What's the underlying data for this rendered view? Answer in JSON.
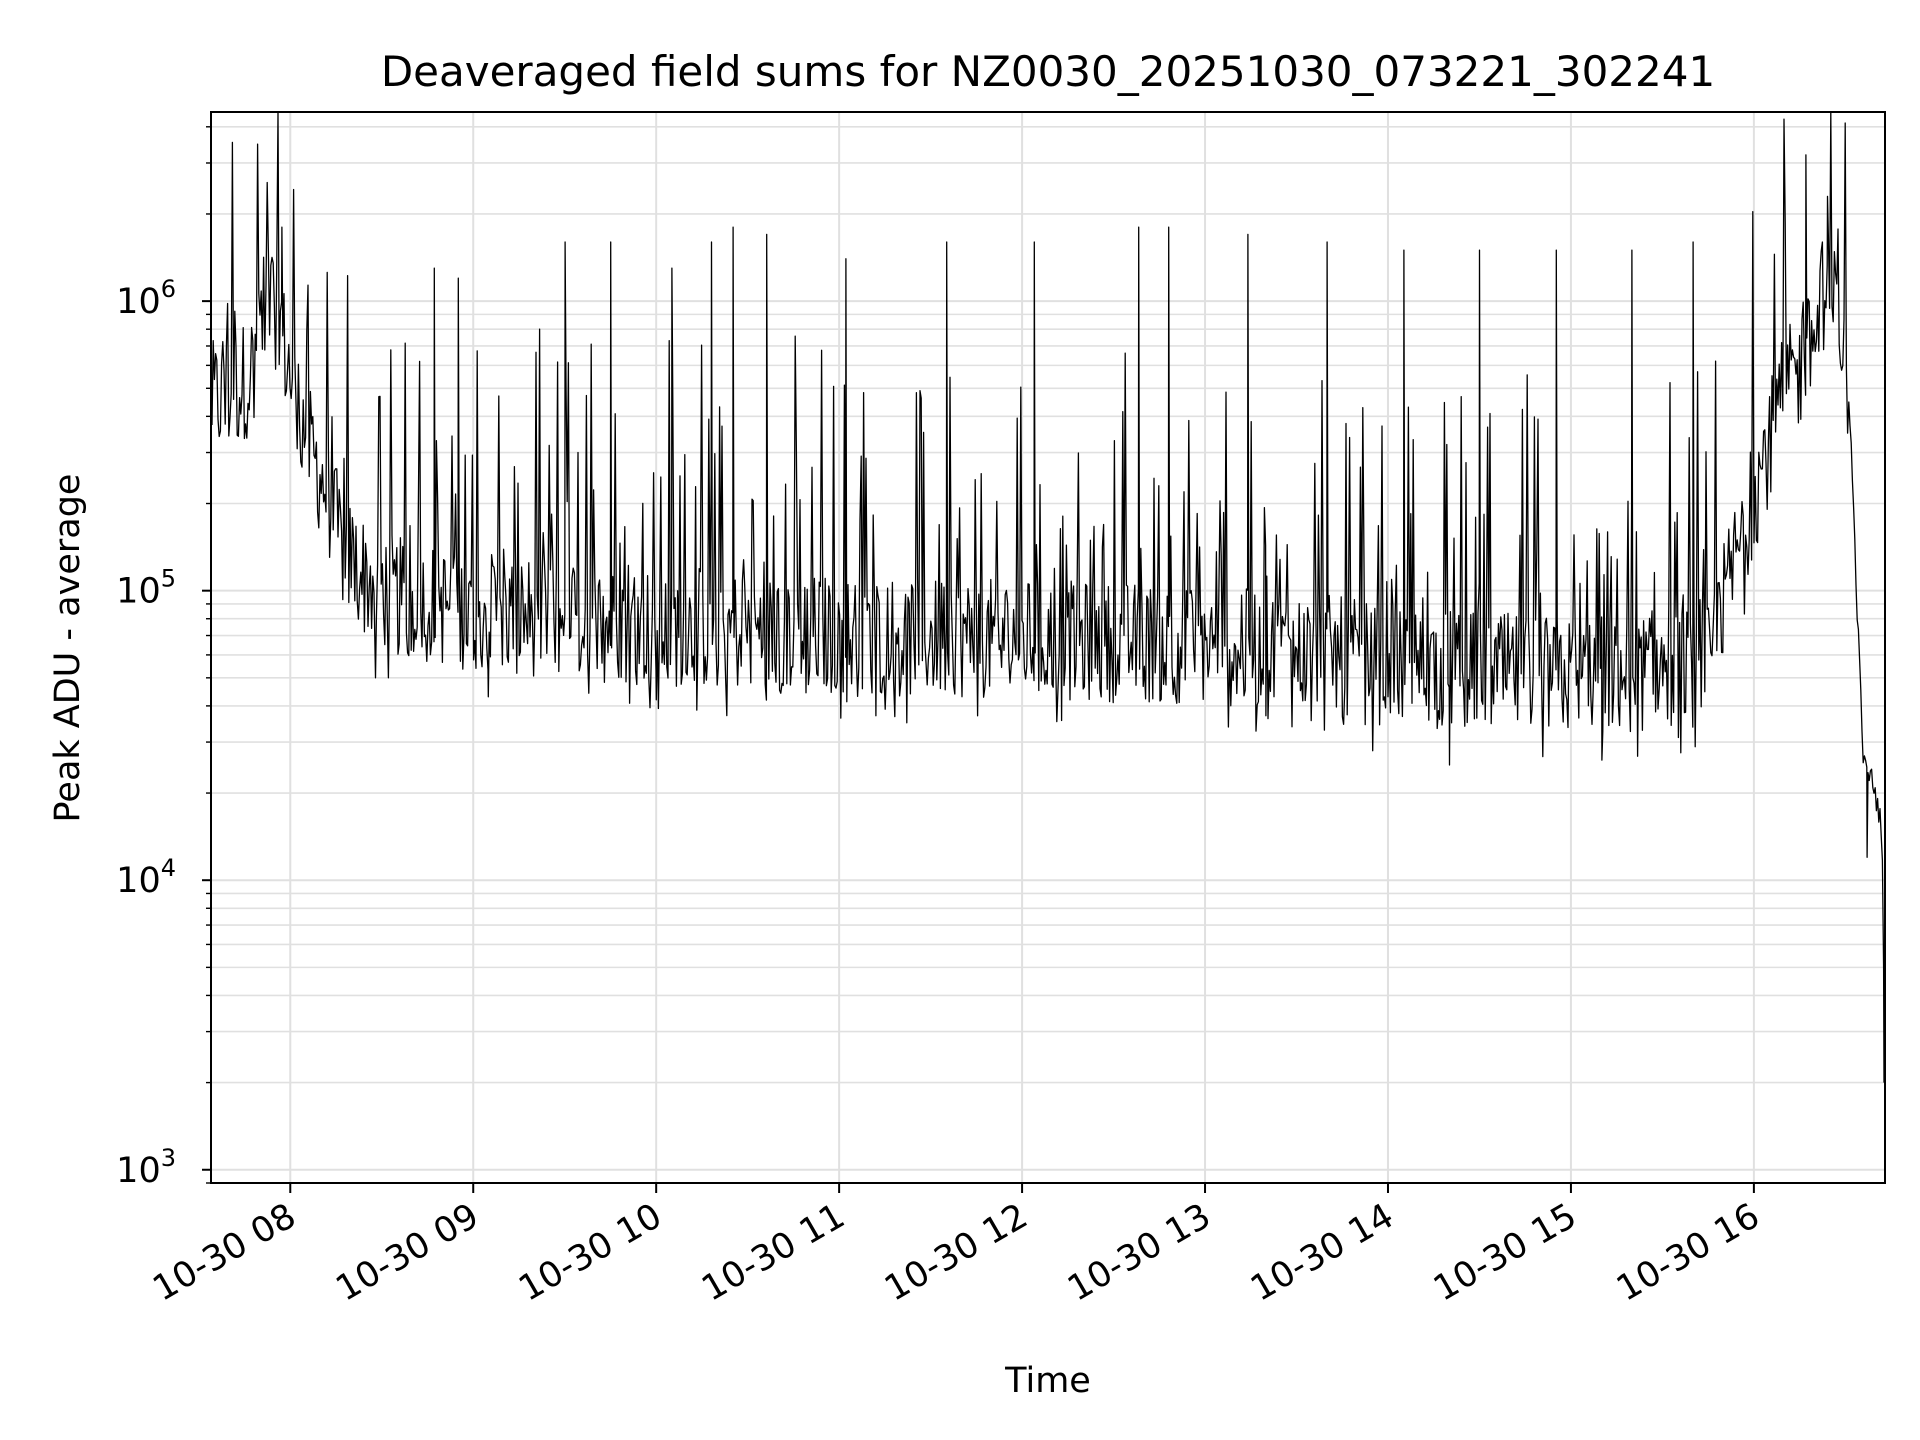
{
  "chart_data": {
    "type": "line",
    "title": "Deaveraged field sums for NZ0030_20251030_073221_302241",
    "xlabel": "Time",
    "ylabel": "Peak ADU - average",
    "x_type": "time",
    "xlim": [
      "2025-10-30 07:34",
      "2025-10-30 16:43"
    ],
    "x_ticks": [
      "2025-10-30 08:00",
      "2025-10-30 09:00",
      "2025-10-30 10:00",
      "2025-10-30 11:00",
      "2025-10-30 12:00",
      "2025-10-30 13:00",
      "2025-10-30 14:00",
      "2025-10-30 15:00",
      "2025-10-30 16:00"
    ],
    "x_tick_labels": [
      "10-30 08",
      "10-30 09",
      "10-30 10",
      "10-30 11",
      "10-30 12",
      "10-30 13",
      "10-30 14",
      "10-30 15",
      "10-30 16"
    ],
    "y_scale": "log",
    "ylim": [
      900,
      4500000
    ],
    "y_ticks": [
      1000,
      10000,
      100000,
      1000000
    ],
    "y_tick_base": "10",
    "y_tick_exponents": [
      "3",
      "4",
      "5",
      "6"
    ],
    "grid": true,
    "line_color": "#000000",
    "grid_color": "#e0e0e0",
    "baseline": [
      [
        "2025-10-30 07:34",
        450000
      ],
      [
        "2025-10-30 07:40",
        470000
      ],
      [
        "2025-10-30 07:47",
        560000
      ],
      [
        "2025-10-30 07:52",
        950000
      ],
      [
        "2025-10-30 07:56",
        1050000
      ],
      [
        "2025-10-30 07:58",
        700000
      ],
      [
        "2025-10-30 08:02",
        450000
      ],
      [
        "2025-10-30 08:06",
        320000
      ],
      [
        "2025-10-30 08:12",
        220000
      ],
      [
        "2025-10-30 08:17",
        140000
      ],
      [
        "2025-10-30 08:25",
        110000
      ],
      [
        "2025-10-30 08:35",
        95000
      ],
      [
        "2025-10-30 09:00",
        85000
      ],
      [
        "2025-10-30 10:00",
        75000
      ],
      [
        "2025-10-30 11:00",
        70000
      ],
      [
        "2025-10-30 12:00",
        68000
      ],
      [
        "2025-10-30 13:00",
        65000
      ],
      [
        "2025-10-30 13:40",
        60000
      ],
      [
        "2025-10-30 14:00",
        55000
      ],
      [
        "2025-10-30 15:00",
        50000
      ],
      [
        "2025-10-30 15:45",
        55000
      ],
      [
        "2025-10-30 15:52",
        110000
      ],
      [
        "2025-10-30 15:58",
        180000
      ],
      [
        "2025-10-30 16:04",
        300000
      ],
      [
        "2025-10-30 16:10",
        480000
      ],
      [
        "2025-10-30 16:18",
        650000
      ],
      [
        "2025-10-30 16:23",
        1100000
      ],
      [
        "2025-10-30 16:26",
        1000000
      ],
      [
        "2025-10-30 16:30",
        700000
      ],
      [
        "2025-10-30 16:32",
        300000
      ],
      [
        "2025-10-30 16:34",
        80000
      ],
      [
        "2025-10-30 16:36",
        25000
      ],
      [
        "2025-10-30 16:39",
        22000
      ],
      [
        "2025-10-30 16:42",
        15000
      ],
      [
        "2025-10-30 16:43",
        2000
      ]
    ],
    "peaks": [
      [
        "2025-10-30 07:57",
        1800000
      ],
      [
        "2025-10-30 08:47",
        1300000
      ],
      [
        "2025-10-30 08:55",
        1200000
      ],
      [
        "2025-10-30 09:30",
        1600000
      ],
      [
        "2025-10-30 09:45",
        1600000
      ],
      [
        "2025-10-30 10:05",
        1300000
      ],
      [
        "2025-10-30 10:18",
        1600000
      ],
      [
        "2025-10-30 10:25",
        1800000
      ],
      [
        "2025-10-30 10:36",
        1700000
      ],
      [
        "2025-10-30 11:02",
        1400000
      ],
      [
        "2025-10-30 11:35",
        1600000
      ],
      [
        "2025-10-30 12:04",
        1600000
      ],
      [
        "2025-10-30 12:38",
        1800000
      ],
      [
        "2025-10-30 12:48",
        1800000
      ],
      [
        "2025-10-30 13:14",
        1700000
      ],
      [
        "2025-10-30 13:40",
        1600000
      ],
      [
        "2025-10-30 14:05",
        1500000
      ],
      [
        "2025-10-30 14:30",
        1500000
      ],
      [
        "2025-10-30 14:55",
        1500000
      ],
      [
        "2025-10-30 15:20",
        1500000
      ],
      [
        "2025-10-30 15:40",
        1600000
      ],
      [
        "2025-10-30 16:17",
        3200000
      ],
      [
        "2025-10-30 16:24",
        2300000
      ]
    ],
    "lows": [
      [
        "2025-10-30 08:28",
        50000
      ],
      [
        "2025-10-30 09:05",
        43000
      ],
      [
        "2025-10-30 10:00",
        42000
      ],
      [
        "2025-10-30 11:12",
        37000
      ],
      [
        "2025-10-30 13:20",
        37000
      ],
      [
        "2025-10-30 13:55",
        28000
      ],
      [
        "2025-10-30 14:20",
        25000
      ],
      [
        "2025-10-30 15:10",
        26000
      ],
      [
        "2025-10-30 16:37",
        12000
      ]
    ]
  }
}
